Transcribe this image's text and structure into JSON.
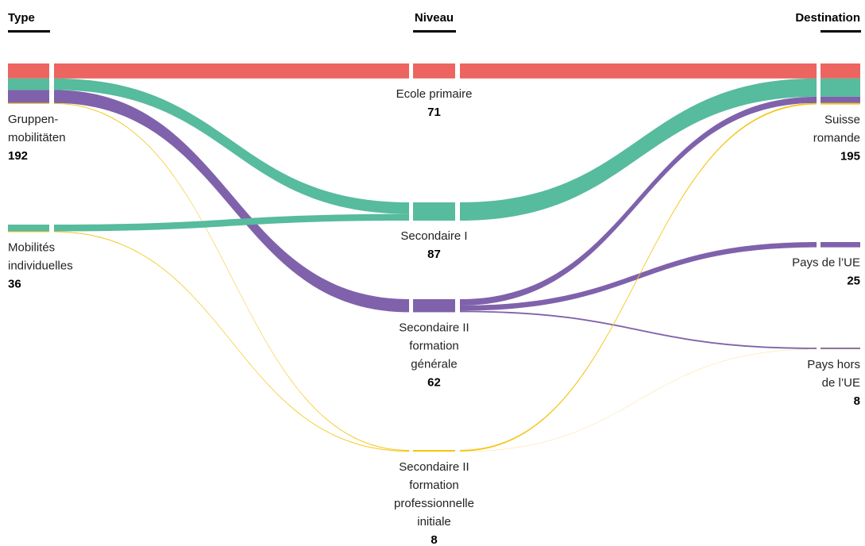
{
  "chart_data": {
    "type": "sankey",
    "columns": [
      {
        "title": "Type",
        "nodes": [
          {
            "label": [
              "Gruppen-",
              "mobilitäten"
            ],
            "value": 192,
            "flows": [
              71,
              55,
              62,
              4
            ]
          },
          {
            "label": [
              "Mobilités",
              "individuelles"
            ],
            "value": 36,
            "flows": [
              0,
              32,
              0,
              4
            ]
          }
        ]
      },
      {
        "title": "Niveau",
        "nodes": [
          {
            "label": [
              "Ecole primaire"
            ],
            "value": 71,
            "color": "#ec6560",
            "flows": [
              71,
              0,
              0
            ]
          },
          {
            "label": [
              "Secondaire I"
            ],
            "value": 87,
            "color": "#57bb9d",
            "flows": [
              87,
              0,
              0
            ]
          },
          {
            "label": [
              "Secondaire II",
              "formation",
              "générale"
            ],
            "value": 62,
            "color": "#7f62ab",
            "flows": [
              30,
              25,
              7
            ]
          },
          {
            "label": [
              "Secondaire II",
              "formation",
              "professionnelle",
              "initiale"
            ],
            "value": 8,
            "color": "#f5c518",
            "flows": [
              7,
              0,
              1
            ]
          }
        ]
      },
      {
        "title": "Destination",
        "nodes": [
          {
            "label": [
              "Suisse",
              "romande"
            ],
            "value": 195
          },
          {
            "label": [
              "Pays de l’UE"
            ],
            "value": 25
          },
          {
            "label": [
              "Pays hors",
              "de l’UE"
            ],
            "value": 8
          }
        ]
      }
    ]
  }
}
